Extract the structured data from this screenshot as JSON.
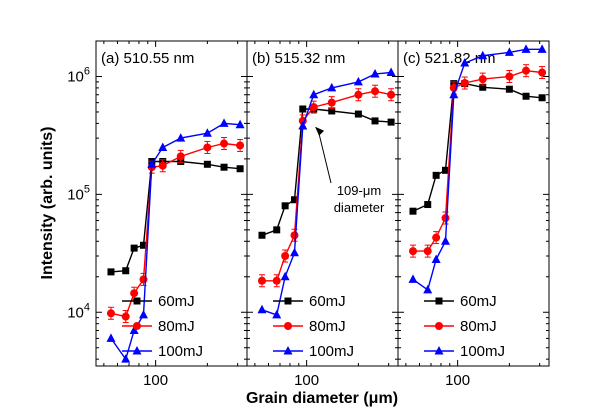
{
  "chart_data": {
    "type": "line",
    "xlabel": "Grain diameter (μm)",
    "ylabel": "Intensity (arb. units)",
    "x_scale": "log",
    "y_scale": "log",
    "xlim": [
      45,
      340
    ],
    "ylim": [
      3500,
      2000000
    ],
    "x_tick_labels": [
      "100"
    ],
    "y_tick_labels": [
      "10⁴",
      "10⁵",
      "10⁶"
    ],
    "y_tick_values": [
      10000,
      100000,
      1000000
    ],
    "series_colors": {
      "60mJ": "#000000",
      "80mJ": "#ff0000",
      "100mJ": "#0000ff"
    },
    "series_markers": {
      "60mJ": "square",
      "80mJ": "circle",
      "100mJ": "triangle"
    },
    "legend_position": "bottom-right",
    "panels": [
      {
        "title": "(a) 510.55 nm",
        "series": [
          {
            "name": "60mJ",
            "x": [
              55,
              67,
              75,
              85,
              95,
              110,
              140,
              200,
              250,
              310
            ],
            "y": [
              22000,
              22500,
              35000,
              37000,
              190000,
              190000,
              190000,
              180000,
              170000,
              165000
            ]
          },
          {
            "name": "80mJ",
            "x": [
              55,
              67,
              75,
              85,
              95,
              110,
              140,
              200,
              250,
              310
            ],
            "y": [
              9800,
              9200,
              14500,
              19000,
              170000,
              175000,
              210000,
              250000,
              270000,
              260000
            ]
          },
          {
            "name": "100mJ",
            "x": [
              55,
              67,
              75,
              85,
              95,
              110,
              140,
              200,
              250,
              310
            ],
            "y": [
              6000,
              4000,
              7000,
              9500,
              180000,
              250000,
              300000,
              330000,
              400000,
              390000
            ]
          }
        ]
      },
      {
        "title": "(b) 515.32 nm",
        "series": [
          {
            "name": "60mJ",
            "x": [
              55,
              67,
              75,
              85,
              95,
              110,
              140,
              200,
              250,
              310
            ],
            "y": [
              45000,
              50000,
              80000,
              90000,
              530000,
              530000,
              510000,
              480000,
              420000,
              410000
            ]
          },
          {
            "name": "80mJ",
            "x": [
              55,
              67,
              75,
              85,
              95,
              110,
              140,
              200,
              250,
              310
            ],
            "y": [
              18500,
              18500,
              30000,
              45000,
              420000,
              550000,
              600000,
              700000,
              750000,
              700000
            ]
          },
          {
            "name": "100mJ",
            "x": [
              55,
              67,
              75,
              85,
              95,
              110,
              140,
              200,
              250,
              310
            ],
            "y": [
              10500,
              9500,
              20000,
              32000,
              380000,
              700000,
              800000,
              900000,
              1050000,
              1080000
            ]
          }
        ],
        "annotation": {
          "text": [
            "109-μm",
            "diameter"
          ]
        }
      },
      {
        "title": "(c) 521.82 nm",
        "series": [
          {
            "name": "60mJ",
            "x": [
              55,
              67,
              75,
              85,
              95,
              110,
              140,
              200,
              250,
              310
            ],
            "y": [
              72000,
              82000,
              145000,
              160000,
              870000,
              870000,
              810000,
              780000,
              680000,
              660000
            ]
          },
          {
            "name": "80mJ",
            "x": [
              55,
              67,
              75,
              85,
              95,
              110,
              140,
              200,
              250,
              310
            ],
            "y": [
              33000,
              33000,
              43000,
              63000,
              800000,
              880000,
              950000,
              1000000,
              1120000,
              1080000
            ]
          },
          {
            "name": "100mJ",
            "x": [
              55,
              67,
              75,
              85,
              95,
              110,
              140,
              200,
              250,
              310
            ],
            "y": [
              19000,
              15500,
              28000,
              40000,
              700000,
              1300000,
              1500000,
              1600000,
              1700000,
              1700000
            ]
          }
        ]
      }
    ]
  }
}
